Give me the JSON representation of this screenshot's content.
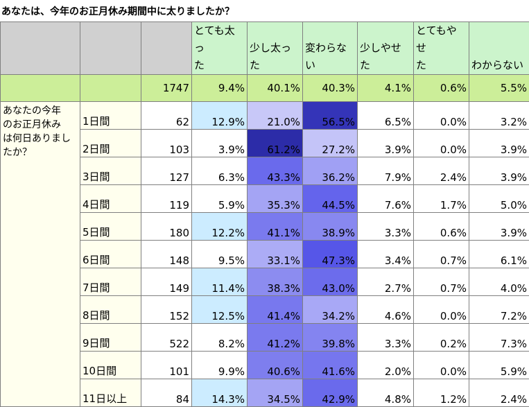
{
  "title": "あなたは、今年のお正月休み期間中に太りましたか？",
  "columns": [
    "とても太った",
    "少し太った",
    "変わらない",
    "少しやせた",
    "とてもやせた",
    "わからない"
  ],
  "column_lines": [
    [
      "とても太っ",
      "た"
    ],
    [
      "",
      "少し太った"
    ],
    [
      "変わらな",
      "い"
    ],
    [
      "少しやせ",
      "た"
    ],
    [
      "とてもやせ",
      "た"
    ],
    [
      "",
      "わからない"
    ]
  ],
  "total": {
    "n": "1747",
    "values": [
      "9.4%",
      "40.1%",
      "40.3%",
      "4.1%",
      "0.6%",
      "5.5%"
    ]
  },
  "question": "あなたの今年のお正月休みは何日ありましたか？",
  "question_lines": [
    "あなたの今年",
    "のお正月休み",
    "は何日ありまし",
    "たか？"
  ],
  "rows": [
    {
      "label": "1日間",
      "n": "62",
      "values": [
        "12.9%",
        "21.0%",
        "56.5%",
        "6.5%",
        "0.0%",
        "3.2%"
      ],
      "colors": [
        "#ccecff",
        "#c8c8f8",
        "#3434b8",
        "#ffffff",
        "#ffffff",
        "#ffffff"
      ]
    },
    {
      "label": "2日間",
      "n": "103",
      "values": [
        "3.9%",
        "61.2%",
        "27.2%",
        "3.9%",
        "0.0%",
        "3.9%"
      ],
      "colors": [
        "#ffffff",
        "#2c2ca8",
        "#c4c4f8",
        "#ffffff",
        "#ffffff",
        "#ffffff"
      ]
    },
    {
      "label": "3日間",
      "n": "127",
      "values": [
        "6.3%",
        "43.3%",
        "36.2%",
        "7.9%",
        "2.4%",
        "3.9%"
      ],
      "colors": [
        "#ffffff",
        "#6a6aec",
        "#a0a0f4",
        "#ffffff",
        "#ffffff",
        "#ffffff"
      ]
    },
    {
      "label": "4日間",
      "n": "119",
      "values": [
        "5.9%",
        "35.3%",
        "44.5%",
        "7.6%",
        "1.7%",
        "5.0%"
      ],
      "colors": [
        "#ffffff",
        "#a4a4f4",
        "#6464ec",
        "#ffffff",
        "#ffffff",
        "#ffffff"
      ]
    },
    {
      "label": "5日間",
      "n": "180",
      "values": [
        "12.2%",
        "41.1%",
        "38.9%",
        "3.3%",
        "0.6%",
        "3.9%"
      ],
      "colors": [
        "#ccecff",
        "#7a7aee",
        "#8888f0",
        "#ffffff",
        "#ffffff",
        "#ffffff"
      ]
    },
    {
      "label": "6日間",
      "n": "148",
      "values": [
        "9.5%",
        "33.1%",
        "47.3%",
        "3.4%",
        "0.7%",
        "6.1%"
      ],
      "colors": [
        "#ffffff",
        "#acacf6",
        "#5656e8",
        "#ffffff",
        "#ffffff",
        "#ffffff"
      ]
    },
    {
      "label": "7日間",
      "n": "149",
      "values": [
        "11.4%",
        "38.3%",
        "43.0%",
        "2.7%",
        "0.7%",
        "4.0%"
      ],
      "colors": [
        "#ccecff",
        "#8c8cf0",
        "#6c6cec",
        "#ffffff",
        "#ffffff",
        "#ffffff"
      ]
    },
    {
      "label": "8日間",
      "n": "152",
      "values": [
        "12.5%",
        "41.4%",
        "34.2%",
        "4.6%",
        "0.0%",
        "7.2%"
      ],
      "colors": [
        "#ccecff",
        "#7878ee",
        "#a8a8f6",
        "#ffffff",
        "#ffffff",
        "#ffffff"
      ]
    },
    {
      "label": "9日間",
      "n": "522",
      "values": [
        "8.2%",
        "41.2%",
        "39.8%",
        "3.3%",
        "0.2%",
        "7.3%"
      ],
      "colors": [
        "#ffffff",
        "#7a7aee",
        "#8484f0",
        "#ffffff",
        "#ffffff",
        "#ffffff"
      ]
    },
    {
      "label": "10日間",
      "n": "101",
      "values": [
        "9.9%",
        "40.6%",
        "41.6%",
        "2.0%",
        "0.0%",
        "5.9%"
      ],
      "colors": [
        "#ffffff",
        "#7e7eee",
        "#7676ee",
        "#ffffff",
        "#ffffff",
        "#ffffff"
      ]
    },
    {
      "label": "11日以上",
      "n": "84",
      "values": [
        "14.3%",
        "34.5%",
        "42.9%",
        "4.8%",
        "1.2%",
        "2.4%"
      ],
      "colors": [
        "#ccecff",
        "#a4a4f4",
        "#6a6aec",
        "#ffffff",
        "#ffffff",
        "#ffffff"
      ]
    }
  ],
  "colors": {
    "header_bg": "#ccf4cc",
    "blank_bg": "#d0d0d0",
    "total_bg": "#ccee99",
    "label_bg": "#ffffee",
    "border": "#7f7f7f"
  }
}
